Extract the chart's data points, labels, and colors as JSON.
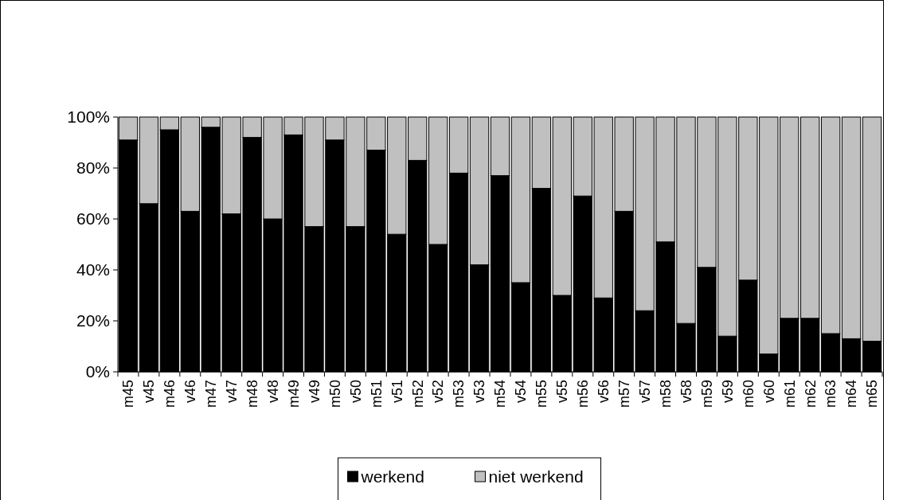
{
  "chart_data": {
    "type": "bar",
    "stacked": true,
    "categories": [
      "m45",
      "v45",
      "m46",
      "v46",
      "m47",
      "v47",
      "m48",
      "v48",
      "m49",
      "v49",
      "m50",
      "v50",
      "m51",
      "v51",
      "m52",
      "v52",
      "m53",
      "v53",
      "m54",
      "v54",
      "m55",
      "v55",
      "m56",
      "v56",
      "m57",
      "v57",
      "m58",
      "v58",
      "m59",
      "v59",
      "m60",
      "v60",
      "m61",
      "m62",
      "m63",
      "m64",
      "m65"
    ],
    "series": [
      {
        "name": "werkend",
        "color": "#000000",
        "values": [
          91,
          66,
          95,
          63,
          96,
          62,
          92,
          60,
          93,
          57,
          91,
          57,
          87,
          54,
          83,
          50,
          78,
          42,
          77,
          35,
          72,
          30,
          69,
          29,
          63,
          24,
          51,
          19,
          41,
          14,
          36,
          7,
          21,
          21,
          15,
          13,
          12
        ]
      },
      {
        "name": "niet werkend",
        "color": "#c0c0c0",
        "values": [
          9,
          34,
          5,
          37,
          4,
          38,
          8,
          40,
          7,
          43,
          9,
          43,
          13,
          46,
          17,
          50,
          22,
          58,
          23,
          65,
          28,
          70,
          31,
          71,
          37,
          76,
          49,
          81,
          59,
          86,
          64,
          93,
          79,
          79,
          85,
          87,
          88
        ]
      }
    ],
    "ylim": [
      0,
      100
    ],
    "yticks": [
      {
        "value": 0,
        "label": "0%"
      },
      {
        "value": 20,
        "label": "20%"
      },
      {
        "value": 40,
        "label": "40%"
      },
      {
        "value": 60,
        "label": "60%"
      },
      {
        "value": 80,
        "label": "80%"
      },
      {
        "value": 100,
        "label": "100%"
      }
    ],
    "grid": false,
    "legend": "bottom"
  }
}
